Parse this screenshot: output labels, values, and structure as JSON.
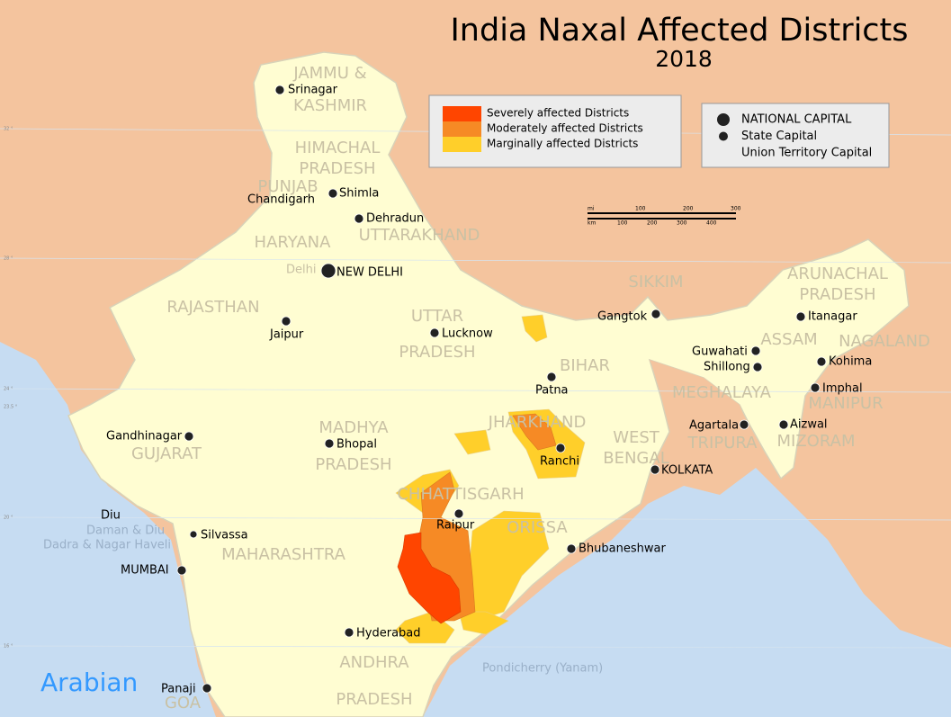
{
  "title": "India Naxal Affected Districts",
  "subtitle": "2018",
  "legend": {
    "items": [
      {
        "label": "Severely affected Districts",
        "color": "#ff4500"
      },
      {
        "label": "Moderately affected Districts",
        "color": "#f68a25"
      },
      {
        "label": "Marginally affected Districts",
        "color": "#ffcf2a"
      }
    ]
  },
  "capital_legend": {
    "items": [
      "NATIONAL CAPITAL",
      "State Capital",
      "Union Territory Capital"
    ]
  },
  "scale": {
    "mi": [
      "mi",
      "100",
      "200",
      "300"
    ],
    "km": [
      "km",
      "100",
      "200",
      "300",
      "400"
    ]
  },
  "latitudes": [
    "32 °",
    "28 °",
    "24 °",
    "23.5 °",
    "20 °",
    "16 °"
  ],
  "states": [
    {
      "lines": [
        "JAMMU &",
        "KASHMIR"
      ]
    },
    {
      "lines": [
        "HIMACHAL",
        "PRADESH"
      ]
    },
    {
      "lines": [
        "PUNJAB"
      ]
    },
    {
      "lines": [
        "HARYANA"
      ]
    },
    {
      "lines": [
        "UTTARAKHAND"
      ]
    },
    {
      "lines": [
        "RAJASTHAN"
      ]
    },
    {
      "lines": [
        "UTTAR",
        "PRADESH"
      ]
    },
    {
      "lines": [
        "BIHAR"
      ]
    },
    {
      "lines": [
        "SIKKIM"
      ]
    },
    {
      "lines": [
        "ARUNACHAL",
        "PRADESH"
      ]
    },
    {
      "lines": [
        "ASSAM"
      ]
    },
    {
      "lines": [
        "NAGALAND"
      ]
    },
    {
      "lines": [
        "MEGHALAYA"
      ]
    },
    {
      "lines": [
        "MANIPUR"
      ]
    },
    {
      "lines": [
        "TRIPURA"
      ]
    },
    {
      "lines": [
        "MIZORAM"
      ]
    },
    {
      "lines": [
        "JHARKHAND"
      ]
    },
    {
      "lines": [
        "WEST",
        "BENGAL"
      ]
    },
    {
      "lines": [
        "MADHYA",
        "PRADESH"
      ]
    },
    {
      "lines": [
        "GUJARAT"
      ]
    },
    {
      "lines": [
        "CHHATTISGARH"
      ]
    },
    {
      "lines": [
        "ORISSA"
      ]
    },
    {
      "lines": [
        "MAHARASHTRA"
      ]
    },
    {
      "lines": [
        "ANDHRA",
        "PRADESH"
      ]
    },
    {
      "lines": [
        "GOA"
      ]
    }
  ],
  "cities": [
    "Srinagar",
    "Shimla",
    "Chandigarh",
    "Dehradun",
    "NEW DELHI",
    "Jaipur",
    "Lucknow",
    "Patna",
    "Gangtok",
    "Itanagar",
    "Guwahati",
    "Shillong",
    "Kohima",
    "Imphal",
    "Aizwal",
    "Agartala",
    "KOLKATA",
    "Ranchi",
    "Bhubaneshwar",
    "Raipur",
    "Bhopal",
    "Gandhinagar",
    "Silvassa",
    "MUMBAI",
    "Hyderabad",
    "Panaji",
    "Diu"
  ],
  "other_labels": [
    "Delhi",
    "Daman & Diu",
    "Dadra & Nagar Haveli",
    "Pondicherry (Yanam)",
    "Arabian"
  ]
}
